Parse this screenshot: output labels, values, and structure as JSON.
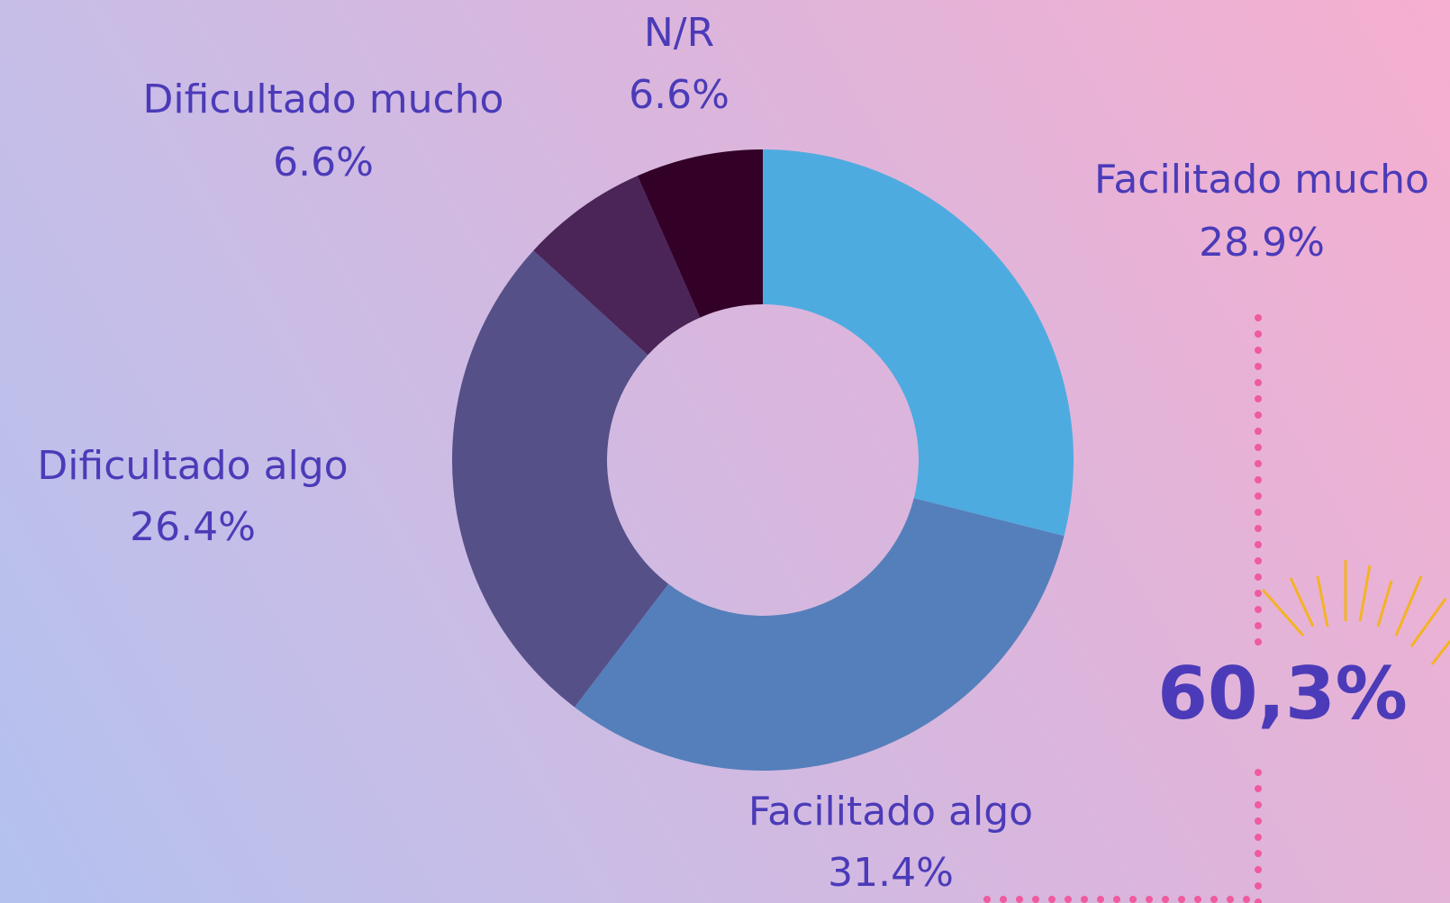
{
  "chart_data": {
    "type": "donut",
    "categories": [
      "Facilitado mucho",
      "Facilitado algo",
      "Dificultado algo",
      "Dificultado mucho",
      "N/R"
    ],
    "values": [
      28.9,
      31.4,
      26.4,
      6.6,
      6.6
    ],
    "value_labels": [
      "28.9%",
      "31.4%",
      "26.4%",
      "6.6%",
      "6.6%"
    ],
    "colors": [
      "#4eabe0",
      "#557fbb",
      "#565089",
      "#4b2558",
      "#330028"
    ],
    "annotation": "60,3%"
  }
}
